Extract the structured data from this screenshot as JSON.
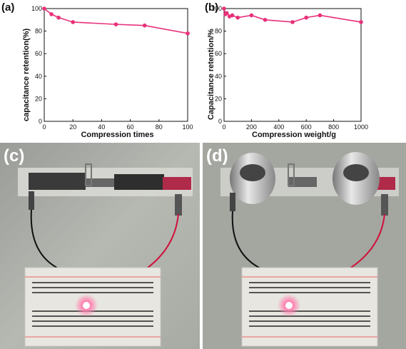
{
  "chart_data": [
    {
      "panel": "(a)",
      "type": "line",
      "xlabel": "Compression times",
      "ylabel": "capacitance retention(%)",
      "xlim": [
        0,
        100
      ],
      "ylim": [
        0,
        100
      ],
      "xticks": [
        0,
        20,
        40,
        60,
        80,
        100
      ],
      "yticks": [
        0,
        20,
        40,
        60,
        80,
        100
      ],
      "color": "#e8307a",
      "x": [
        0,
        5,
        10,
        20,
        50,
        70,
        100
      ],
      "y": [
        100,
        95,
        92,
        88,
        86,
        85,
        78
      ]
    },
    {
      "panel": "(b)",
      "type": "line",
      "xlabel": "Compression weight/g",
      "ylabel": "Capacitance retention/%",
      "xlim": [
        0,
        1000
      ],
      "ylim": [
        0,
        100
      ],
      "xticks": [
        0,
        200,
        400,
        600,
        800,
        1000
      ],
      "yticks": [
        0,
        20,
        40,
        60,
        80,
        100
      ],
      "color": "#e8307a",
      "x": [
        0,
        10,
        20,
        40,
        60,
        100,
        200,
        300,
        500,
        600,
        700,
        1000
      ],
      "y": [
        100,
        95,
        96,
        93,
        94,
        92,
        94,
        90,
        88,
        92,
        94,
        88
      ]
    }
  ],
  "photos": {
    "left_label": "(c)",
    "right_label": "(d)"
  }
}
